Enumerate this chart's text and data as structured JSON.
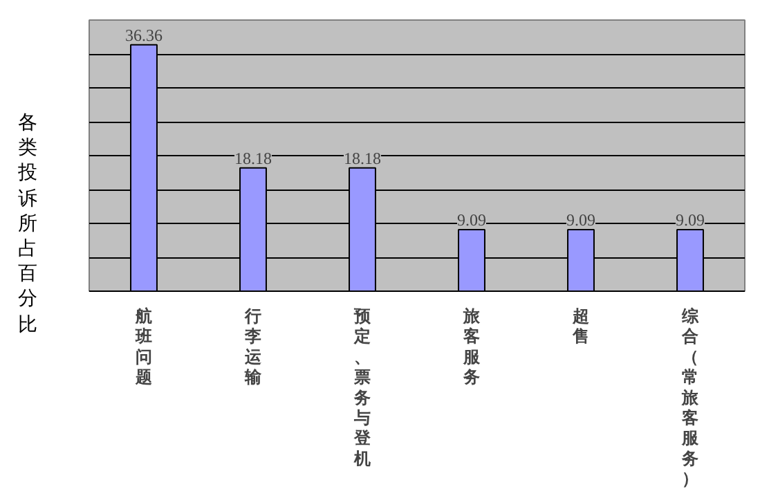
{
  "chart_data": {
    "type": "bar",
    "ylabel": "各类投诉所占百分比",
    "categories": [
      "航班问题",
      "行李运输",
      "预定、票务与登机",
      "旅客服务",
      "超售",
      "综合（常旅客服务）"
    ],
    "values": [
      36.36,
      18.18,
      18.18,
      9.09,
      9.09,
      9.09
    ],
    "color": "#9999ff",
    "ylim": [
      0,
      40
    ],
    "yticks": [
      {
        "value": 0,
        "label": null
      },
      {
        "value": 5,
        "label": null
      },
      {
        "value": 10,
        "label": null
      },
      {
        "value": 15,
        "label": null
      },
      {
        "value": 20,
        "label": null
      },
      {
        "value": 25,
        "label": null
      },
      {
        "value": 30,
        "label": null
      },
      {
        "value": 35,
        "label": null
      },
      {
        "value": 40,
        "label": null
      }
    ],
    "tick_labels": "x",
    "grid": "y",
    "data_labels": true
  }
}
